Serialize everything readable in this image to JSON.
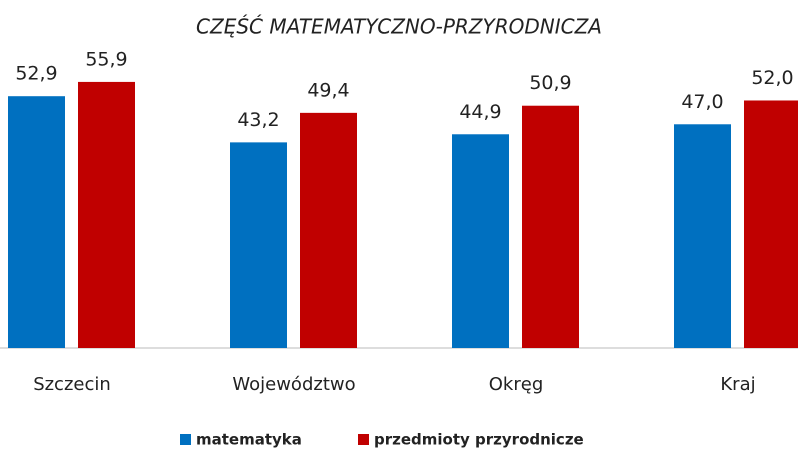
{
  "chart_data": {
    "type": "bar",
    "title": "CZĘŚĆ MATEMATYCZNO-PRZYRODNICZA",
    "categories": [
      "Szczecin",
      "Województwo",
      "Okręg",
      "Kraj"
    ],
    "series": [
      {
        "name": "matematyka",
        "color": "#0070c0",
        "values": [
          52.9,
          43.2,
          44.9,
          47.0
        ],
        "value_labels": [
          "52,9",
          "43,2",
          "44,9",
          "47,0"
        ]
      },
      {
        "name": "przedmioty przyrodnicze",
        "color": "#c00000",
        "values": [
          55.9,
          49.4,
          50.9,
          52.0
        ],
        "value_labels": [
          "55,9",
          "49,4",
          "50,9",
          "52,0"
        ]
      }
    ]
  }
}
